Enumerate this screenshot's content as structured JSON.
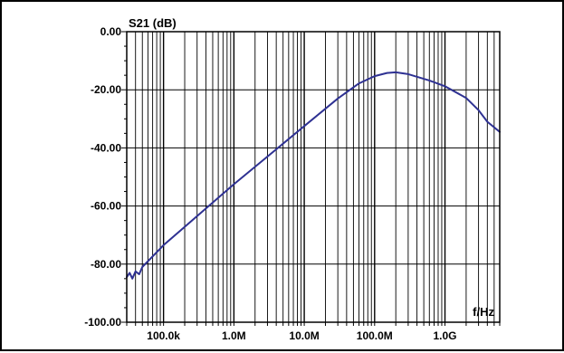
{
  "chart_data": {
    "type": "line",
    "ylabel": "S21 (dB)",
    "xlabel": "f/Hz",
    "x_scale": "log",
    "xlim": [
      30000,
      6000000000
    ],
    "ylim": [
      -100,
      0
    ],
    "grid": true,
    "y_ticks": [
      {
        "value": 0,
        "label": "0.00"
      },
      {
        "value": -20,
        "label": "-20.00"
      },
      {
        "value": -40,
        "label": "-40.00"
      },
      {
        "value": -60,
        "label": "-60.00"
      },
      {
        "value": -80,
        "label": "-80.00"
      },
      {
        "value": -100,
        "label": "-100.00"
      }
    ],
    "x_ticks": [
      {
        "value": 100000,
        "label": "100.0k"
      },
      {
        "value": 1000000,
        "label": "1.0M"
      },
      {
        "value": 10000000,
        "label": "10.0M"
      },
      {
        "value": 100000000,
        "label": "100.0M"
      },
      {
        "value": 1000000000,
        "label": "1.0G"
      }
    ],
    "series": [
      {
        "color": "#2e3192",
        "points": [
          [
            30000,
            -84.5
          ],
          [
            33000,
            -83
          ],
          [
            36000,
            -85
          ],
          [
            40000,
            -82.5
          ],
          [
            45000,
            -83.5
          ],
          [
            50000,
            -81
          ],
          [
            100000,
            -73.5
          ],
          [
            300000,
            -63.5
          ],
          [
            1000000,
            -52.5
          ],
          [
            3000000,
            -43
          ],
          [
            10000000,
            -32.5
          ],
          [
            30000000,
            -23
          ],
          [
            60000000,
            -17.8
          ],
          [
            100000000,
            -15.3
          ],
          [
            150000000,
            -14.2
          ],
          [
            200000000,
            -14
          ],
          [
            300000000,
            -14.6
          ],
          [
            600000000,
            -16.8
          ],
          [
            1000000000,
            -18.8
          ],
          [
            2000000000,
            -22.8
          ],
          [
            3000000000,
            -27
          ],
          [
            4000000000,
            -31
          ],
          [
            6000000000,
            -34.5
          ]
        ]
      }
    ]
  }
}
